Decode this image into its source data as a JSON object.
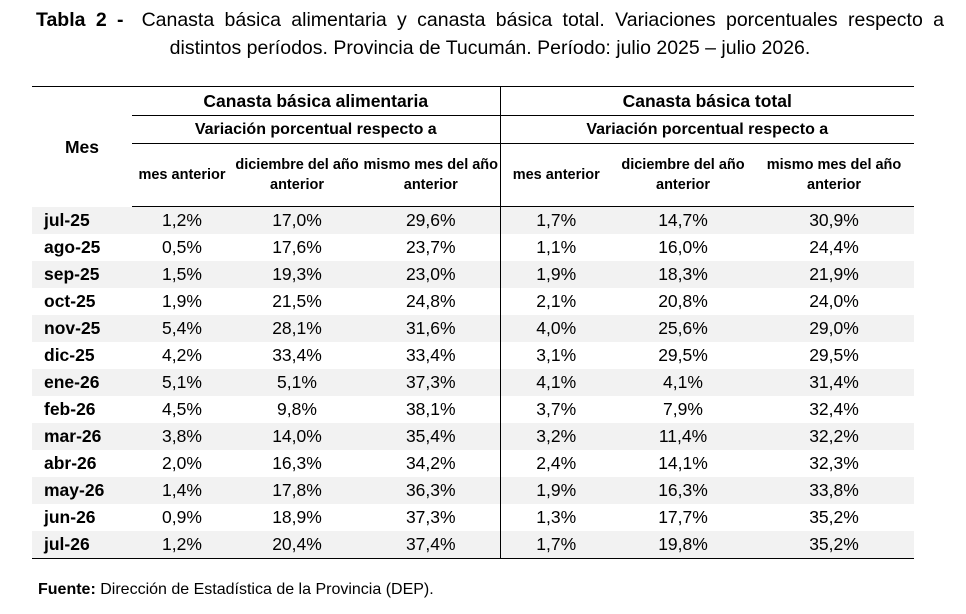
{
  "caption": {
    "label": "Tabla 2 -",
    "text": "Canasta básica alimentaria y canasta básica total. Variaciones porcentuales respecto a distintos períodos. Provincia de Tucumán. Período: julio 2025 – julio 2026."
  },
  "table": {
    "row_header": "Mes",
    "groups": [
      {
        "title": "Canasta básica alimentaria",
        "subtitle": "Variación porcentual respecto a"
      },
      {
        "title": "Canasta básica total",
        "subtitle": "Variación porcentual respecto a"
      }
    ],
    "columns": [
      "mes anterior",
      "diciembre del año anterior",
      "mismo mes del año anterior",
      "mes anterior",
      "diciembre del año anterior",
      "mismo mes del año anterior"
    ],
    "rows": [
      [
        "jul-25",
        "1,2%",
        "17,0%",
        "29,6%",
        "1,7%",
        "14,7%",
        "30,9%"
      ],
      [
        "ago-25",
        "0,5%",
        "17,6%",
        "23,7%",
        "1,1%",
        "16,0%",
        "24,4%"
      ],
      [
        "sep-25",
        "1,5%",
        "19,3%",
        "23,0%",
        "1,9%",
        "18,3%",
        "21,9%"
      ],
      [
        "oct-25",
        "1,9%",
        "21,5%",
        "24,8%",
        "2,1%",
        "20,8%",
        "24,0%"
      ],
      [
        "nov-25",
        "5,4%",
        "28,1%",
        "31,6%",
        "4,0%",
        "25,6%",
        "29,0%"
      ],
      [
        "dic-25",
        "4,2%",
        "33,4%",
        "33,4%",
        "3,1%",
        "29,5%",
        "29,5%"
      ],
      [
        "ene-26",
        "5,1%",
        "5,1%",
        "37,3%",
        "4,1%",
        "4,1%",
        "31,4%"
      ],
      [
        "feb-26",
        "4,5%",
        "9,8%",
        "38,1%",
        "3,7%",
        "7,9%",
        "32,4%"
      ],
      [
        "mar-26",
        "3,8%",
        "14,0%",
        "35,4%",
        "3,2%",
        "11,4%",
        "32,2%"
      ],
      [
        "abr-26",
        "2,0%",
        "16,3%",
        "34,2%",
        "2,4%",
        "14,1%",
        "32,3%"
      ],
      [
        "may-26",
        "1,4%",
        "17,8%",
        "36,3%",
        "1,9%",
        "16,3%",
        "33,8%"
      ],
      [
        "jun-26",
        "0,9%",
        "18,9%",
        "37,3%",
        "1,3%",
        "17,7%",
        "35,2%"
      ],
      [
        "jul-26",
        "1,2%",
        "20,4%",
        "37,4%",
        "1,7%",
        "19,8%",
        "35,2%"
      ]
    ]
  },
  "source": {
    "label": "Fuente:",
    "text": "Dirección de Estadística de la Provincia (DEP)."
  }
}
